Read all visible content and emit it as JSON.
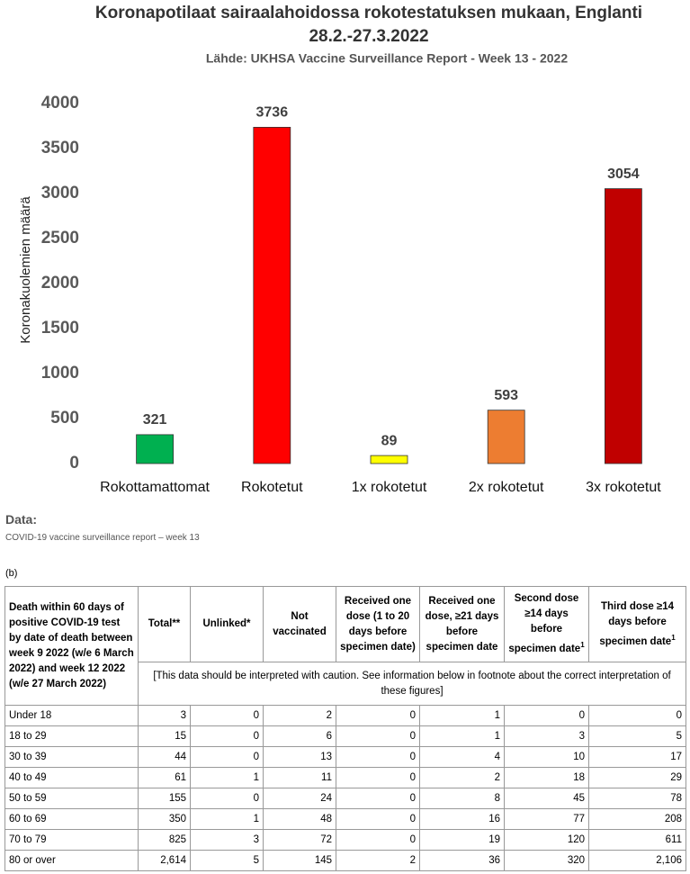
{
  "chart_data": {
    "type": "bar",
    "title": [
      "Koronapotilaat sairaalahoidossa rokotestatuksen mukaan, Englanti",
      "28.2.-27.3.2022"
    ],
    "subtitle": "Lähde: UKHSA Vaccine Surveillance Report - Week 13 - 2022",
    "y_label": "Koronakuolemien määrä",
    "categories": [
      "Rokottamattomat",
      "Rokotetut",
      "1x rokotetut",
      "2x rokotetut",
      "3x rokotetut"
    ],
    "values": [
      321,
      3736,
      89,
      593,
      3054
    ],
    "colors": [
      "#00b050",
      "#ff0000",
      "#ffff00",
      "#ed7d31",
      "#c00000"
    ],
    "ylim": [
      0,
      4000
    ],
    "yticks": [
      0,
      500,
      1000,
      1500,
      2000,
      2500,
      3000,
      3500,
      4000
    ],
    "grid": false,
    "data_labels": true
  },
  "data_heading": "Data:",
  "source": "COVID-19 vaccine surveillance report – week 13",
  "table_label": "(b)",
  "table": {
    "header": [
      {
        "text": "Death within 60 days of positive COVID-19 test by date of death between week 9 2022 (w/e 6 March 2022) and week 12 2022 (w/e 27 March 2022)"
      },
      {
        "text": "Total**"
      },
      {
        "text": "Unlinked*"
      },
      {
        "text": "Not vaccinated"
      },
      {
        "text": "Received one dose (1 to 20 days before specimen date)"
      },
      {
        "text": "Received one dose, ≥21 days before specimen date"
      },
      {
        "text": "Second dose ≥14 days before specimen date",
        "note": "1"
      },
      {
        "text": "Third dose ≥14 days before specimen date",
        "note": "1"
      }
    ],
    "caution": "[This data should be interpreted with caution. See information below in footnote about the correct interpretation of these figures]",
    "rows": [
      [
        "Under 18",
        "3",
        "0",
        "2",
        "0",
        "1",
        "0",
        "0"
      ],
      [
        "18 to 29",
        "15",
        "0",
        "6",
        "0",
        "1",
        "3",
        "5"
      ],
      [
        "30 to 39",
        "44",
        "0",
        "13",
        "0",
        "4",
        "10",
        "17"
      ],
      [
        "40 to 49",
        "61",
        "1",
        "11",
        "0",
        "2",
        "18",
        "29"
      ],
      [
        "50 to 59",
        "155",
        "0",
        "24",
        "0",
        "8",
        "45",
        "78"
      ],
      [
        "60 to 69",
        "350",
        "1",
        "48",
        "0",
        "16",
        "77",
        "208"
      ],
      [
        "70 to 79",
        "825",
        "3",
        "72",
        "0",
        "19",
        "120",
        "611"
      ],
      [
        "80 or over",
        "2,614",
        "5",
        "145",
        "2",
        "36",
        "320",
        "2,106"
      ]
    ]
  }
}
